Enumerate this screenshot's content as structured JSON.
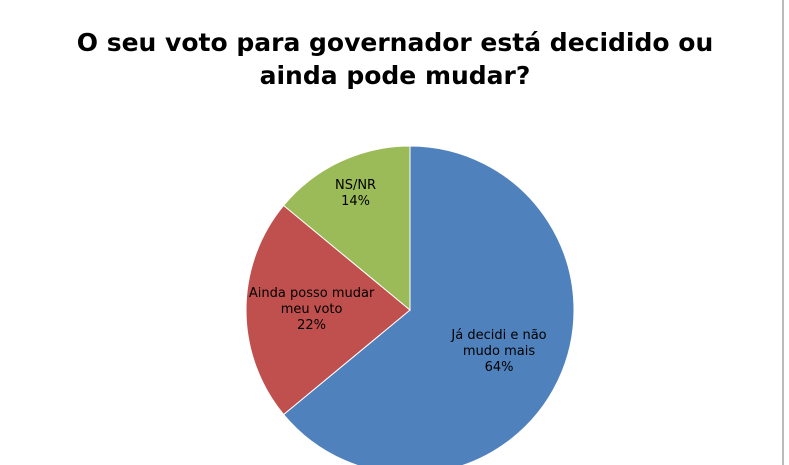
{
  "chart_data": {
    "type": "pie",
    "title": "O seu voto para governador está decidido ou ainda pode mudar?",
    "categories": [
      "Já decidi e não mudo mais",
      "Ainda posso mudar meu voto",
      "NS/NR"
    ],
    "values": [
      64,
      22,
      14
    ],
    "value_labels": [
      "64%",
      "22%",
      "14%"
    ],
    "colors": [
      "#4f81bd",
      "#c0504d",
      "#9bbb59"
    ]
  }
}
